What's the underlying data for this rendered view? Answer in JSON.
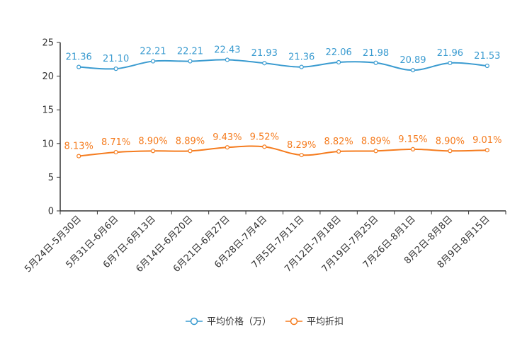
{
  "chart_data": {
    "type": "line",
    "title": "",
    "xlabel": "",
    "ylabel": "",
    "ylim": [
      0,
      25
    ],
    "yticks": [
      0,
      5,
      10,
      15,
      20,
      25
    ],
    "categories": [
      "5月24日-5月30日",
      "5月31日-6月6日",
      "6月7日-6月13日",
      "6月14日-6月20日",
      "6月21日-6月27日",
      "6月28日-7月4日",
      "7月5日-7月11日",
      "7月12日-7月18日",
      "7月19日-7月25日",
      "7月26日-8月1日",
      "8月2日-8月8日",
      "8月9日-8月15日"
    ],
    "series": [
      {
        "name": "平均价格（万）",
        "color": "#3a9bd0",
        "values": [
          21.36,
          21.1,
          22.21,
          22.21,
          22.43,
          21.93,
          21.36,
          22.06,
          21.98,
          20.89,
          21.96,
          21.53
        ],
        "labels": [
          "21.36",
          "21.10",
          "22.21",
          "22.21",
          "22.43",
          "21.93",
          "21.36",
          "22.06",
          "21.98",
          "20.89",
          "21.96",
          "21.53"
        ]
      },
      {
        "name": "平均折扣",
        "color": "#f57c1f",
        "values": [
          8.13,
          8.71,
          8.9,
          8.89,
          9.43,
          9.52,
          8.29,
          8.82,
          8.89,
          9.15,
          8.9,
          9.01
        ],
        "labels": [
          "8.13%",
          "8.71%",
          "8.90%",
          "8.89%",
          "9.43%",
          "9.52%",
          "8.29%",
          "8.82%",
          "8.89%",
          "9.15%",
          "8.90%",
          "9.01%"
        ]
      }
    ],
    "legend_position": "bottom-center"
  }
}
